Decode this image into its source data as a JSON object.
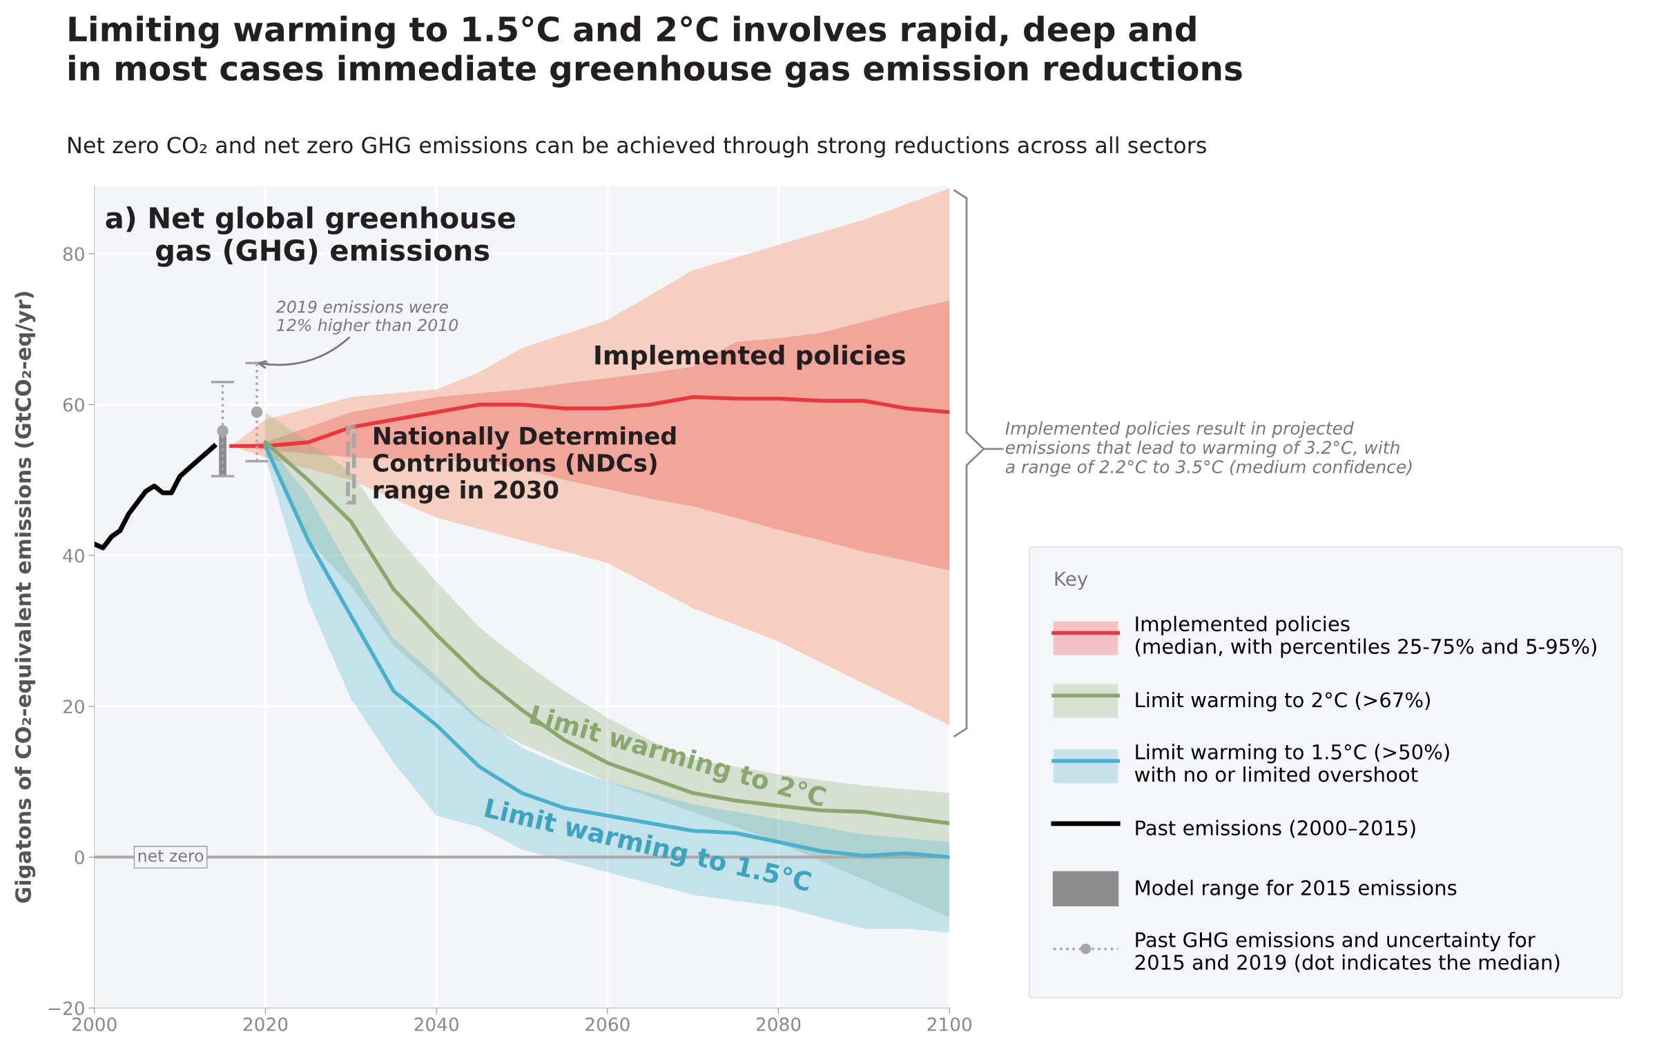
{
  "chart_data": {
    "type": "line",
    "title": "Limiting warming to 1.5°C and 2°C involves rapid, deep and\nin most cases immediate greenhouse gas emission reductions",
    "subtitle": "Net zero CO₂ and net zero GHG emissions can be achieved through strong reductions across all sectors",
    "ylabel": "Gigatons of CO₂-equivalent emissions (GtCO₂-eq/yr)",
    "legend_title": "Key",
    "xlim": [
      2000,
      2100
    ],
    "xticks": [
      2000,
      2020,
      2040,
      2060,
      2080,
      2100
    ],
    "ylim": [
      -20,
      89
    ],
    "yticks": [
      -20,
      0,
      20,
      40,
      60,
      80
    ],
    "grid": true,
    "legend": "right",
    "series": [
      {
        "color": "#f6cfc0",
        "x": [
          2016,
          2020,
          2030,
          2040,
          2045,
          2050,
          2060,
          2070,
          2080,
          2090,
          2100
        ],
        "values": [
          null,
          null,
          null,
          null,
          null,
          null,
          null,
          null,
          null,
          null,
          null
        ],
        "lower": [
          54.5,
          53,
          50,
          45,
          43.5,
          42,
          39,
          33,
          28.6,
          23,
          17.5
        ],
        "upper": [
          54.5,
          58,
          61,
          62,
          64.3,
          67.5,
          71.2,
          77.8,
          81.2,
          84.5,
          88.7
        ]
      },
      {
        "name": "Implemented policies\n(median, with percentiles 25-75% and 5-95%)",
        "color": "#e8383d",
        "x": [
          2016,
          2020,
          2025,
          2030,
          2035,
          2040,
          2045,
          2050,
          2055,
          2060,
          2065,
          2070,
          2075,
          2080,
          2085,
          2090,
          2095,
          2100
        ],
        "values": [
          54.5,
          54.5,
          55,
          57,
          58,
          59,
          60,
          60,
          59.5,
          59.5,
          60,
          61,
          60.8,
          60.8,
          60.5,
          60.5,
          59.5,
          59
        ],
        "lower": [
          54.5,
          54,
          53.5,
          53,
          52.8,
          52.6,
          52.5,
          51.5,
          50,
          48.8,
          47.5,
          46.5,
          45,
          43.4,
          42,
          40.5,
          39.3,
          38
        ],
        "upper": [
          54.5,
          55,
          57,
          59,
          60,
          61,
          61.5,
          62,
          62.8,
          63.5,
          64.2,
          65,
          68.3,
          68.8,
          69.5,
          71,
          72.5,
          73.8
        ]
      },
      {
        "name": "Limit warming to 2°C (>67%)",
        "color": "#8aa86e",
        "x": [
          2020,
          2025,
          2030,
          2035,
          2040,
          2045,
          2050,
          2055,
          2060,
          2065,
          2070,
          2075,
          2080,
          2085,
          2090,
          2095,
          2100
        ],
        "values": [
          55,
          50,
          44.5,
          35.5,
          29.5,
          24,
          19.5,
          15.5,
          12.5,
          10.5,
          8.5,
          7.5,
          6.8,
          6.2,
          6,
          5.2,
          4.5
        ],
        "lower": [
          54,
          42,
          36,
          28,
          23,
          18,
          15,
          12.5,
          10,
          8,
          6,
          4,
          2,
          -0.5,
          -3,
          -5.5,
          -8
        ],
        "upper": [
          59,
          55,
          51,
          43,
          36.5,
          30.5,
          26,
          22,
          18.5,
          15.5,
          13,
          12,
          11,
          10.2,
          9.5,
          9,
          8.5
        ]
      },
      {
        "name": "Limit warming to 1.5°C (>50%)\nwith no or limited overshoot",
        "color": "#4bb0cb",
        "x": [
          2020,
          2025,
          2030,
          2035,
          2040,
          2045,
          2050,
          2055,
          2060,
          2065,
          2070,
          2075,
          2080,
          2085,
          2090,
          2095,
          2100
        ],
        "values": [
          54.5,
          42,
          32,
          22,
          17.5,
          12,
          8.5,
          6.5,
          5.5,
          4.5,
          3.5,
          3.2,
          2,
          0.8,
          0.2,
          0.5,
          0
        ],
        "lower": [
          53,
          34,
          21,
          12.5,
          5.5,
          4,
          1,
          -0.5,
          -2,
          -3.5,
          -5,
          -5.8,
          -6.5,
          -8,
          -9.5,
          -9.5,
          -10
        ],
        "upper": [
          55,
          48,
          38,
          29,
          24,
          18.5,
          14.5,
          12,
          10,
          8.5,
          7,
          6,
          5,
          4,
          3,
          2.5,
          2
        ]
      },
      {
        "name": "Past emissions (2000–2015)",
        "color": "#000000",
        "x": [
          2000,
          2001,
          2002,
          2003,
          2004,
          2005,
          2006,
          2007,
          2008,
          2009,
          2010,
          2011,
          2012,
          2013,
          2014
        ],
        "values": [
          41.5,
          41,
          42.5,
          43.3,
          45.5,
          47,
          48.5,
          49.2,
          48.3,
          48.3,
          50.5,
          51.5,
          52.5,
          53.5,
          54.5
        ]
      },
      {
        "name": "Model range for 2015 emissions",
        "type": "bar",
        "color": "#8c8c8c",
        "x": [
          2015
        ],
        "base": [
          50.5
        ],
        "values": [
          6.5
        ]
      },
      {
        "type": "bar",
        "color": "#a6a6a6",
        "line_style": "dashed",
        "x": [
          2030
        ],
        "base": [
          47
        ],
        "values": [
          10
        ]
      },
      {
        "name": "Past GHG emissions and uncertainty for\n2015 and 2019 (dot indicates the median)",
        "type": "scatter",
        "marker": "circle",
        "line_style": "dotted",
        "color": "#a6a6a6",
        "x": [
          2015,
          2019
        ],
        "values": [
          56.5,
          59
        ],
        "errors": [
          [
            50.5,
            63
          ],
          [
            52.5,
            65.5
          ]
        ]
      }
    ],
    "ref_lines": [
      {
        "axis": "y",
        "value": 0,
        "label": "net zero",
        "color": "#aaaaaa"
      }
    ],
    "annotations": [
      "a) Net global greenhouse\n     gas (GHG) emissions",
      {
        "text": "2019 emissions were\n12% higher than 2010",
        "x": 2019,
        "y": 65.5
      },
      {
        "text": "Nationally Determined\nContributions (NDCs)\nrange in 2030",
        "x": 2030,
        "y": 52
      },
      {
        "text": "Implemented policies",
        "x": 2080,
        "y": 60.8
      },
      {
        "text": "Limit warming to 2°C",
        "x": 2070,
        "y": 8.5
      },
      {
        "text": "Limit warming to 1.5°C",
        "x": 2065,
        "y": 4.5
      },
      "Implemented policies result in projected\nemissions that lead to warming of 3.2°C, with\na range of 2.2°C to 3.5°C (medium confidence)"
    ]
  }
}
